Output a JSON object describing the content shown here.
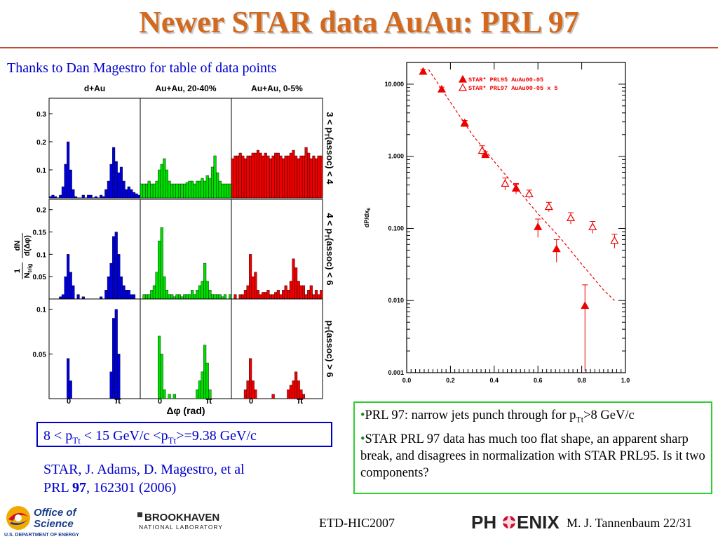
{
  "slide": {
    "title": "Newer STAR data AuAu: PRL 97",
    "thanks": "Thanks to Dan Magestro for table of data points",
    "cuts": {
      "part1": "8 < p",
      "sub1": "Tt",
      "part2": " < 15 GeV/c  <p",
      "sub2": "Tt",
      "part3": ">=9.38 GeV/c"
    },
    "reference": {
      "line1": "STAR, J. Adams, D. Magestro, et al",
      "line2_pre": "PRL ",
      "line2_bold": "97",
      "line2_post": ", 162301 (2006)"
    },
    "bullets": {
      "b1_pre": "PRL 97: narrow jets punch through for p",
      "b1_sub": "Tt",
      "b1_post": ">8 GeV/c",
      "b2": "STAR PRL 97 data has much too flat shape, an apparent sharp break, and disagrees in normalization with STAR PRL95. Is it two components?"
    },
    "bullet_char": "•",
    "footer": {
      "etd": "ETD-HIC2007",
      "author": "M. J. Tannenbaum   22/31"
    },
    "logos": {
      "science_line1": "Office of",
      "science_line2": "Science",
      "science_line3": "U.S. DEPARTMENT OF ENERGY",
      "bnl_line1": "BROOKHAVEN",
      "bnl_line2": "NATIONAL LABORATORY",
      "phenix_pre": "PH",
      "phenix_post": "ENIX"
    },
    "colors": {
      "title": "#d2691e",
      "blue_text": "#0000cc",
      "box_green": "#33cc33",
      "dAu": "#0000dd",
      "AuAu_mid": "#00dd00",
      "AuAu_cent": "#ee0000"
    }
  },
  "chart_data": [
    {
      "type": "bar",
      "title": "",
      "columns": [
        "d+Au",
        "Au+Au, 20-40%",
        "Au+Au, 0-5%"
      ],
      "rows": [
        "3 < pT(assoc) < 4",
        "4 < pT(assoc) < 6",
        "pT(assoc) > 6"
      ],
      "row_labels": [
        {
          "pre": "3 < p",
          "sub": "T",
          "post": "(assoc) < 4"
        },
        {
          "pre": "4 < p",
          "sub": "T",
          "post": "(assoc) < 6"
        },
        {
          "pre": "p",
          "sub": "T",
          "post": "(assoc) > 6"
        }
      ],
      "xlabel": "Δφ (rad)",
      "ylabel": {
        "one": "1",
        "ntrig": "N",
        "ntrig_sub": "trig",
        "num": "dN",
        "den": "d(Δφ)"
      },
      "xticks": [
        "0",
        "π"
      ],
      "yticks": [
        [
          "0.3",
          "0.2",
          "0.1"
        ],
        [
          "0.2",
          "0.15",
          "0.1",
          "0.05"
        ],
        [
          "0.1",
          "0.05"
        ]
      ],
      "ylim": [
        [
          0,
          0.35
        ],
        [
          0,
          0.22
        ],
        [
          0,
          0.11
        ]
      ],
      "series": [
        [
          [
            0.005,
            0.01,
            0.005,
            0.0,
            0.01,
            0.04,
            0.12,
            0.2,
            0.1,
            0.03,
            0.005,
            0.0,
            0.0,
            0.01,
            0.0,
            0.01,
            0.01,
            0.0,
            0.005,
            0.0,
            0.01,
            0.005,
            0.03,
            0.06,
            0.12,
            0.18,
            0.13,
            0.09,
            0.11,
            0.06,
            0.03,
            0.04,
            0.03,
            0.02,
            0.015,
            0.01
          ],
          [
            0.05,
            0.05,
            0.05,
            0.06,
            0.05,
            0.05,
            0.06,
            0.1,
            0.12,
            0.14,
            0.1,
            0.06,
            0.05,
            0.05,
            0.05,
            0.05,
            0.05,
            0.05,
            0.055,
            0.06,
            0.06,
            0.05,
            0.06,
            0.06,
            0.07,
            0.06,
            0.08,
            0.07,
            0.11,
            0.15,
            0.09,
            0.06,
            0.05,
            0.05,
            0.05,
            0.05
          ],
          [
            0.14,
            0.15,
            0.15,
            0.16,
            0.15,
            0.14,
            0.15,
            0.15,
            0.16,
            0.16,
            0.17,
            0.16,
            0.15,
            0.16,
            0.15,
            0.14,
            0.15,
            0.16,
            0.16,
            0.15,
            0.14,
            0.15,
            0.15,
            0.16,
            0.17,
            0.15,
            0.14,
            0.15,
            0.15,
            0.18,
            0.16,
            0.14,
            0.15,
            0.14,
            0.15,
            0.15
          ]
        ],
        [
          [
            0.0,
            0.0,
            0.0,
            0.0,
            0.005,
            0.01,
            0.05,
            0.1,
            0.06,
            0.03,
            0.0,
            0.01,
            0.0,
            0.005,
            0.0,
            0.0,
            0.0,
            0.0,
            0.0,
            0.0,
            0.005,
            0.0,
            0.02,
            0.05,
            0.08,
            0.14,
            0.15,
            0.1,
            0.05,
            0.03,
            0.02,
            0.02,
            0.01,
            0.01,
            0.0,
            0.0
          ],
          [
            0.0,
            0.01,
            0.01,
            0.01,
            0.02,
            0.03,
            0.06,
            0.13,
            0.16,
            0.05,
            0.02,
            0.01,
            0.01,
            0.005,
            0.01,
            0.01,
            0.005,
            0.01,
            0.01,
            0.01,
            0.02,
            0.01,
            0.02,
            0.03,
            0.04,
            0.08,
            0.04,
            0.02,
            0.01,
            0.01,
            0.01,
            0.01,
            0.005,
            0.01,
            0.0,
            0.01
          ],
          [
            0.0,
            0.01,
            0.0,
            0.01,
            0.01,
            0.02,
            0.03,
            0.1,
            0.05,
            0.06,
            0.02,
            0.01,
            0.015,
            0.015,
            0.02,
            0.01,
            0.01,
            0.015,
            0.02,
            0.01,
            0.02,
            0.03,
            0.02,
            0.04,
            0.09,
            0.07,
            0.04,
            0.03,
            0.03,
            0.01,
            0.02,
            0.03,
            0.01,
            0.02,
            0.01,
            0.02
          ]
        ],
        [
          [
            0.0,
            0.0,
            0.0,
            0.0,
            0.0,
            0.0,
            0.0,
            0.045,
            0.02,
            0.0,
            0.0,
            0.0,
            0.0,
            0.0,
            0.0,
            0.0,
            0.0,
            0.0,
            0.0,
            0.0,
            0.0,
            0.0,
            0.0,
            0.0,
            0.03,
            0.09,
            0.1,
            0.05,
            0.0,
            0.0,
            0.0,
            0.0,
            0.0,
            0.0,
            0.0,
            0.0
          ],
          [
            0.0,
            0.0,
            0.0,
            0.0,
            0.0,
            0.0,
            0.0,
            0.07,
            0.05,
            0.01,
            0.0,
            0.005,
            0.0,
            0.005,
            0.0,
            0.0,
            0.0,
            0.0,
            0.0,
            0.0,
            0.0,
            0.0,
            0.01,
            0.02,
            0.03,
            0.06,
            0.04,
            0.01,
            0.0,
            0.0,
            0.0,
            0.0,
            0.0,
            0.0,
            0.0,
            0.0
          ],
          [
            0.0,
            0.0,
            0.0,
            0.0,
            0.0,
            0.01,
            0.02,
            0.045,
            0.02,
            0.01,
            0.0,
            0.0,
            0.0,
            0.0,
            0.0,
            0.0,
            0.005,
            0.0,
            0.0,
            0.0,
            0.0,
            0.0,
            0.01,
            0.015,
            0.02,
            0.03,
            0.02,
            0.01,
            0.005,
            0.0,
            0.0,
            0.0,
            0.0,
            0.0,
            0.0,
            0.0
          ]
        ]
      ]
    },
    {
      "type": "scatter",
      "title": "",
      "xlabel": "x",
      "xlabel_sub": "E",
      "ylabel": "dP/dx",
      "ylabel_sub": "E",
      "yscale": "log",
      "xlim": [
        0.0,
        1.0
      ],
      "ylim": [
        0.001,
        20.0
      ],
      "xticks": [
        "0.0",
        "0.2",
        "0.4",
        "0.6",
        "0.8",
        "1.0"
      ],
      "yticks": [
        "10.000",
        "1.000",
        "0.100",
        "0.010",
        "0.001"
      ],
      "legend_position": "top-right",
      "series": [
        {
          "name": "STAR*  PRL95    AuAu00-05",
          "marker": "filled-triangle",
          "x": [
            0.075,
            0.16,
            0.265,
            0.36,
            0.5,
            0.6,
            0.685,
            0.815
          ],
          "y": [
            15.0,
            8.5,
            2.9,
            1.05,
            0.36,
            0.105,
            0.052,
            0.0085
          ],
          "yerr": [
            1.0,
            0.6,
            0.25,
            0.1,
            0.05,
            0.03,
            0.018,
            0.008
          ]
        },
        {
          "name": "STAR*  PRL97    AuAu00-05 x 5",
          "marker": "open-triangle",
          "x": [
            0.265,
            0.345,
            0.45,
            0.5,
            0.56,
            0.65,
            0.75,
            0.85,
            0.95
          ],
          "y": [
            2.85,
            1.2,
            0.42,
            0.36,
            0.3,
            0.2,
            0.14,
            0.105,
            0.068
          ],
          "yerr": [
            0.25,
            0.2,
            0.08,
            0.06,
            0.04,
            0.03,
            0.025,
            0.02,
            0.015
          ]
        },
        {
          "name": "",
          "marker": "dashed-line",
          "x": [
            0.1,
            0.2,
            0.3,
            0.4,
            0.5,
            0.6,
            0.7,
            0.8,
            0.9,
            0.95
          ],
          "y": [
            16.0,
            5.6,
            2.0,
            0.85,
            0.37,
            0.16,
            0.075,
            0.032,
            0.014,
            0.01
          ]
        }
      ]
    }
  ]
}
